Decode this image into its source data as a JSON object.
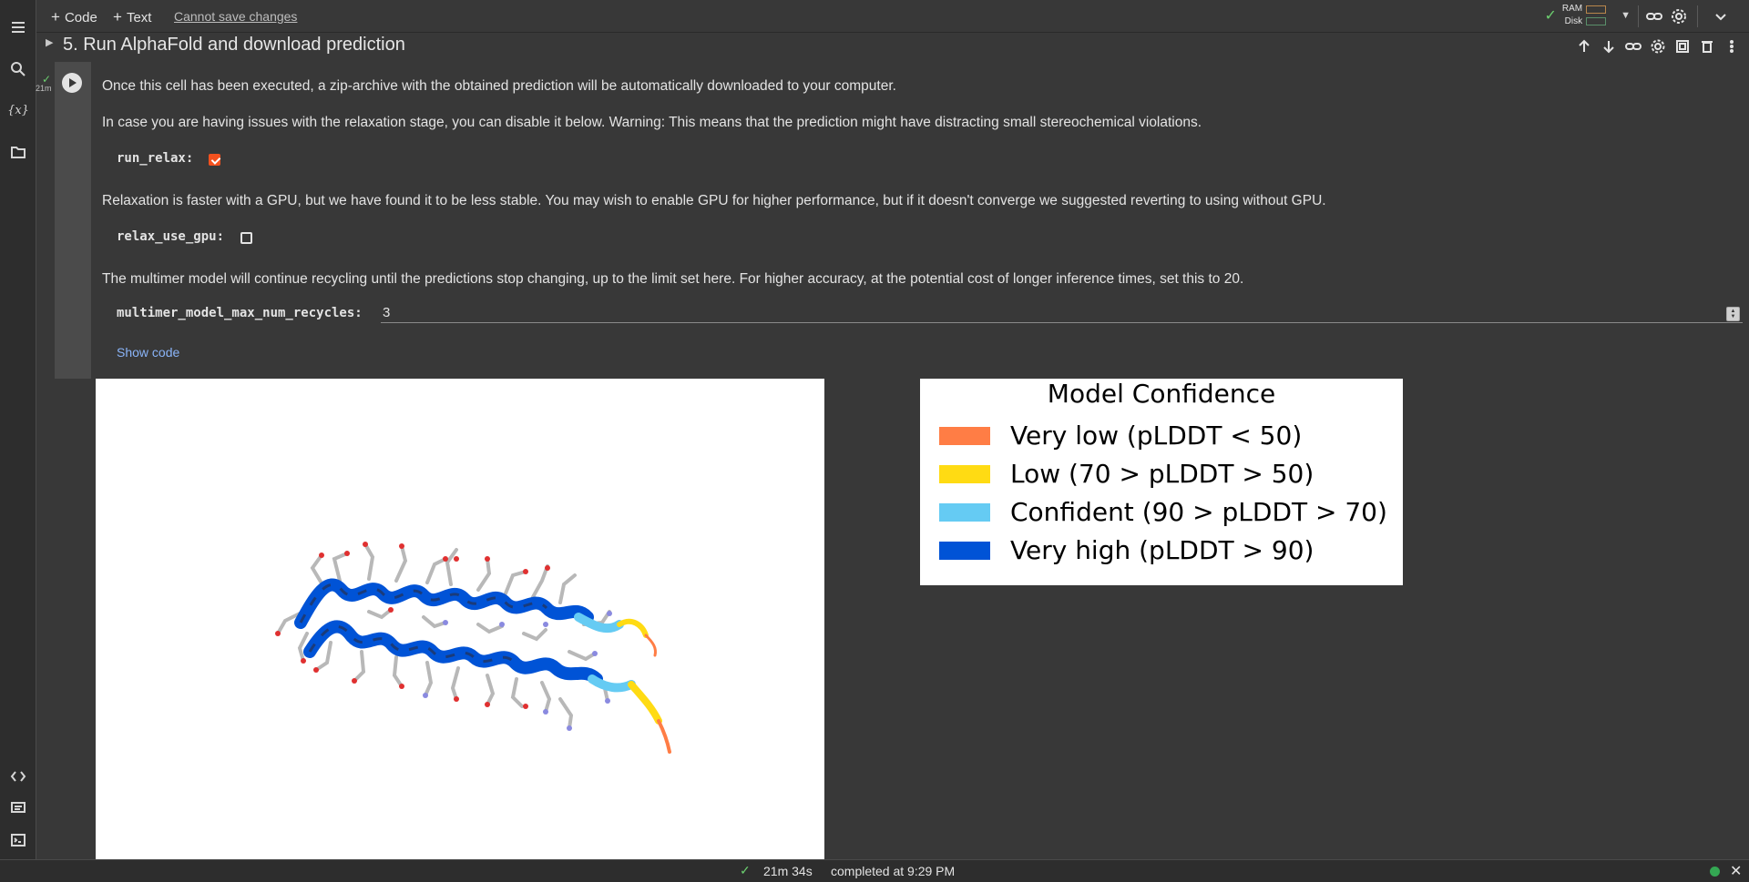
{
  "toolbar": {
    "code_label": "Code",
    "text_label": "Text",
    "save_status": "Cannot save changes",
    "ram_label": "RAM",
    "disk_label": "Disk"
  },
  "section": {
    "title": "5. Run AlphaFold and download prediction"
  },
  "cell": {
    "exec_time_short": "21m",
    "para1": "Once this cell has been executed, a zip-archive with the obtained prediction will be automatically downloaded to your computer.",
    "para2": "In case you are having issues with the relaxation stage, you can disable it below. Warning: This means that the prediction might have distracting small stereochemical violations.",
    "run_relax_label": "run_relax:",
    "run_relax_checked": true,
    "para3": "Relaxation is faster with a GPU, but we have found it to be less stable. You may wish to enable GPU for higher performance, but if it doesn't converge we suggested reverting to using without GPU.",
    "relax_use_gpu_label": "relax_use_gpu:",
    "relax_use_gpu_checked": false,
    "para4": "The multimer model will continue recycling until the predictions stop changing, up to the limit set here. For higher accuracy, at the potential cost of longer inference times, set this to 20.",
    "recycles_label": "multimer_model_max_num_recycles:",
    "recycles_value": "3",
    "show_code": "Show code"
  },
  "legend": {
    "title": "Model Confidence",
    "items": [
      {
        "label": "Very low (pLDDT < 50)",
        "color": "#FF7D45"
      },
      {
        "label": "Low (70 > pLDDT > 50)",
        "color": "#FFDB13"
      },
      {
        "label": "Confident (90 > pLDDT > 70)",
        "color": "#65CBF3"
      },
      {
        "label": "Very high (pLDDT > 90)",
        "color": "#0053D6"
      }
    ]
  },
  "status": {
    "duration": "21m 34s",
    "completed": "completed at 9:29 PM"
  },
  "colors": {
    "accent_checkbox": "#f4511e",
    "link": "#8ab4f8",
    "success": "#6ccf6f"
  }
}
